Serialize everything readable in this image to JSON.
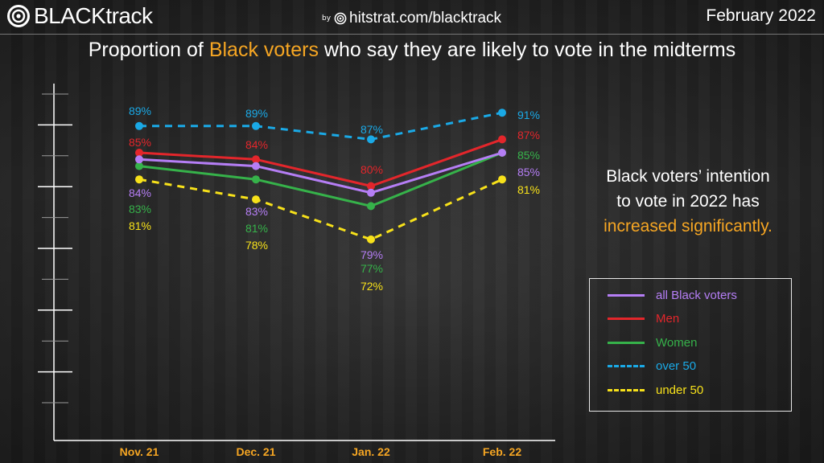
{
  "header": {
    "brand": "BLACKtrack",
    "by": "by",
    "url": "hitstrat.com/blacktrack",
    "date": "February 2022"
  },
  "title": {
    "pre": "Proportion of ",
    "highlight": "Black voters",
    "post": " who say they are likely to vote in the midterms"
  },
  "callout": {
    "line1": "Black  voters’  intention",
    "line2": "to vote in 2022 has",
    "highlight": "increased significantly."
  },
  "colors": {
    "highlight": "#f6a623",
    "axis": "#ffffff"
  },
  "icons": {
    "logo": "target-icon",
    "byline": "target-icon"
  },
  "chart_data": {
    "type": "line",
    "title": "Proportion of Black voters who say they are likely to vote in the midterms",
    "categories": [
      "Nov. 21",
      "Dec. 21",
      "Jan. 22",
      "Feb. 22"
    ],
    "ylim": [
      0,
      100
    ],
    "grid": false,
    "legend_position": "bottom-right",
    "series": [
      {
        "name": "all Black voters",
        "color": "#b57ef5",
        "dashed": false,
        "values": [
          84,
          83,
          79,
          85
        ]
      },
      {
        "name": "Men",
        "color": "#e3262b",
        "dashed": false,
        "values": [
          85,
          84,
          80,
          87
        ]
      },
      {
        "name": "Women",
        "color": "#36b24a",
        "dashed": false,
        "values": [
          83,
          81,
          77,
          85
        ]
      },
      {
        "name": "over 50",
        "color": "#1aa9e6",
        "dashed": true,
        "values": [
          89,
          89,
          87,
          91
        ]
      },
      {
        "name": "under 50",
        "color": "#f7e11a",
        "dashed": true,
        "values": [
          81,
          78,
          72,
          81
        ]
      }
    ]
  }
}
